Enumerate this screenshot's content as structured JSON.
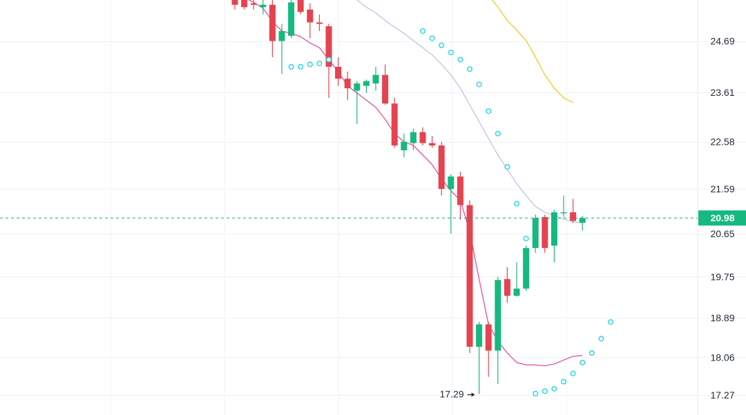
{
  "chart_data": {
    "type": "candlestick",
    "title": "",
    "xlabel": "",
    "ylabel": "",
    "ylim": [
      16.85,
      25.55
    ],
    "y_ticks": [
      "24.69",
      "23.61",
      "22.58",
      "21.59",
      "20.65",
      "19.75",
      "18.89",
      "18.06",
      "17.27"
    ],
    "grid": true,
    "last_price": {
      "value": 20.98,
      "label": "20.98"
    },
    "low_annotation": {
      "value": 17.29,
      "label": "17.29"
    },
    "colors": {
      "up": "#16b97f",
      "down": "#e5434f",
      "ma_short": "#e05aa8",
      "ma_mid": "#c9bfe6",
      "ma_long": "#f0cf2b",
      "sar": "#22d3e5",
      "grid": "#eef1f4",
      "last_line": "#16a37a"
    },
    "candles": [
      {
        "o": 25.85,
        "h": 25.95,
        "l": 25.35,
        "c": 25.45
      },
      {
        "o": 25.55,
        "h": 25.75,
        "l": 25.35,
        "c": 25.4
      },
      {
        "o": 25.48,
        "h": 25.8,
        "l": 25.35,
        "c": 25.45
      },
      {
        "o": 25.4,
        "h": 25.55,
        "l": 25.25,
        "c": 25.45
      },
      {
        "o": 25.45,
        "h": 25.7,
        "l": 24.35,
        "c": 24.69
      },
      {
        "o": 24.69,
        "h": 25.05,
        "l": 24.0,
        "c": 24.9
      },
      {
        "o": 24.8,
        "h": 25.55,
        "l": 24.75,
        "c": 25.5
      },
      {
        "o": 25.55,
        "h": 25.7,
        "l": 25.25,
        "c": 25.3
      },
      {
        "o": 25.35,
        "h": 25.48,
        "l": 24.75,
        "c": 25.08
      },
      {
        "o": 25.08,
        "h": 25.25,
        "l": 24.9,
        "c": 25.05
      },
      {
        "o": 25.0,
        "h": 25.05,
        "l": 23.5,
        "c": 24.15
      },
      {
        "o": 24.15,
        "h": 24.35,
        "l": 23.75,
        "c": 23.9
      },
      {
        "o": 23.9,
        "h": 24.05,
        "l": 23.45,
        "c": 23.7
      },
      {
        "o": 23.65,
        "h": 23.85,
        "l": 22.95,
        "c": 23.8
      },
      {
        "o": 23.75,
        "h": 23.88,
        "l": 23.6,
        "c": 23.85
      },
      {
        "o": 23.8,
        "h": 24.15,
        "l": 23.65,
        "c": 23.98
      },
      {
        "o": 23.98,
        "h": 24.2,
        "l": 23.35,
        "c": 23.38
      },
      {
        "o": 23.38,
        "h": 23.5,
        "l": 22.45,
        "c": 22.5
      },
      {
        "o": 22.4,
        "h": 22.75,
        "l": 22.25,
        "c": 22.58
      },
      {
        "o": 22.55,
        "h": 22.85,
        "l": 22.4,
        "c": 22.78
      },
      {
        "o": 22.78,
        "h": 22.88,
        "l": 22.5,
        "c": 22.55
      },
      {
        "o": 22.55,
        "h": 22.7,
        "l": 22.45,
        "c": 22.5
      },
      {
        "o": 22.5,
        "h": 22.58,
        "l": 21.45,
        "c": 21.59
      },
      {
        "o": 21.59,
        "h": 21.9,
        "l": 20.65,
        "c": 21.85
      },
      {
        "o": 21.85,
        "h": 21.95,
        "l": 20.95,
        "c": 21.25
      },
      {
        "o": 21.25,
        "h": 21.35,
        "l": 18.15,
        "c": 18.28
      },
      {
        "o": 18.28,
        "h": 18.8,
        "l": 17.29,
        "c": 18.75
      },
      {
        "o": 18.75,
        "h": 18.8,
        "l": 17.65,
        "c": 18.2
      },
      {
        "o": 18.2,
        "h": 19.75,
        "l": 17.5,
        "c": 19.68
      },
      {
        "o": 19.7,
        "h": 19.95,
        "l": 19.2,
        "c": 19.35
      },
      {
        "o": 19.35,
        "h": 20.05,
        "l": 19.33,
        "c": 19.5
      },
      {
        "o": 19.5,
        "h": 20.4,
        "l": 19.45,
        "c": 20.35
      },
      {
        "o": 20.35,
        "h": 21.05,
        "l": 20.25,
        "c": 20.98
      },
      {
        "o": 21.0,
        "h": 21.05,
        "l": 20.25,
        "c": 20.35
      },
      {
        "o": 20.4,
        "h": 21.15,
        "l": 20.05,
        "c": 21.1
      },
      {
        "o": 21.1,
        "h": 21.45,
        "l": 21.0,
        "c": 21.1
      },
      {
        "o": 21.1,
        "h": 21.38,
        "l": 20.88,
        "c": 20.92
      },
      {
        "o": 20.88,
        "h": 21.02,
        "l": 20.72,
        "c": 20.98
      }
    ],
    "ma_short": [
      25.75,
      25.6,
      25.5,
      25.38,
      25.1,
      24.9,
      24.85,
      24.78,
      24.65,
      24.55,
      24.3,
      24.05,
      23.75,
      23.6,
      23.45,
      23.3,
      23.05,
      22.75,
      22.58,
      22.5,
      22.3,
      22.1,
      21.8,
      21.55,
      21.35,
      20.7,
      19.7,
      18.75,
      18.4,
      18.15,
      17.95,
      17.9,
      17.9,
      17.88,
      17.92,
      18.0,
      18.08,
      18.1
    ],
    "ma_mid_start": 13,
    "ma_mid": [
      25.55,
      25.4,
      25.28,
      25.12,
      24.98,
      24.85,
      24.7,
      24.55,
      24.4,
      24.2,
      23.98,
      23.7,
      23.35,
      23.0,
      22.65,
      22.3,
      22.0,
      21.7,
      21.45,
      21.22,
      21.1,
      21.03,
      20.96,
      20.9,
      20.88
    ],
    "ma_long_start": 27,
    "ma_long": [
      25.65,
      25.4,
      25.12,
      24.92,
      24.7,
      24.35,
      23.98,
      23.7,
      23.5,
      23.4
    ],
    "sar_start": 6,
    "sar": [
      24.15,
      24.15,
      24.2,
      24.22,
      24.3,
      null,
      null,
      null,
      null,
      null,
      null,
      null,
      null,
      null,
      24.9,
      24.75,
      24.6,
      24.45,
      24.3,
      24.1,
      23.78,
      23.22,
      22.75,
      22.05,
      21.28,
      20.55,
      17.3,
      17.35,
      17.4,
      17.55,
      17.72,
      17.95,
      18.15,
      18.45,
      18.8
    ]
  }
}
